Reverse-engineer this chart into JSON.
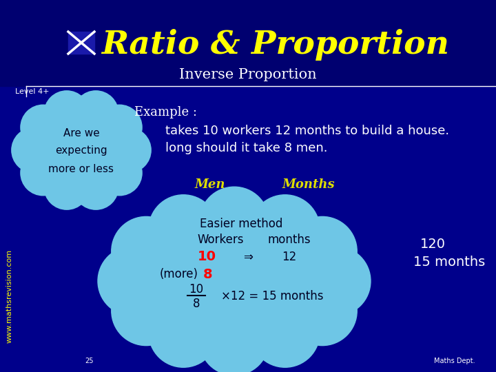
{
  "bg_color": "#00008B",
  "header_color": "#000070",
  "title_text": "Ratio & Proportion",
  "title_color": "#FFFF00",
  "subtitle_text": "Inverse Proportion",
  "subtitle_color": "#FFFFFF",
  "level_text": "Level 4+",
  "level_color": "#FFFFFF",
  "website_text": "www.mathsrevision.com",
  "website_color": "#FFFF00",
  "main_text1": "takes 10 workers 12 months to build a house.",
  "main_text2": "long should it take 8 men.",
  "example_prefix": "Example :",
  "men_label": "Men",
  "months_label": "Months",
  "cloud1_lines": [
    "Are we",
    "expecting",
    "more or less"
  ],
  "cloud1_color": "#6EC6E6",
  "cloud2_color": "#6EC6E6",
  "result_line1": "120",
  "result_line2": "15 months",
  "result_color": "#FFFFFF",
  "footer_text": "Maths Dept.",
  "footer_color": "#FFFFFF",
  "page_num": "25",
  "divider_color": "#FFFFFF",
  "text_color_dark": "#000022",
  "red_color": "#FF0000"
}
